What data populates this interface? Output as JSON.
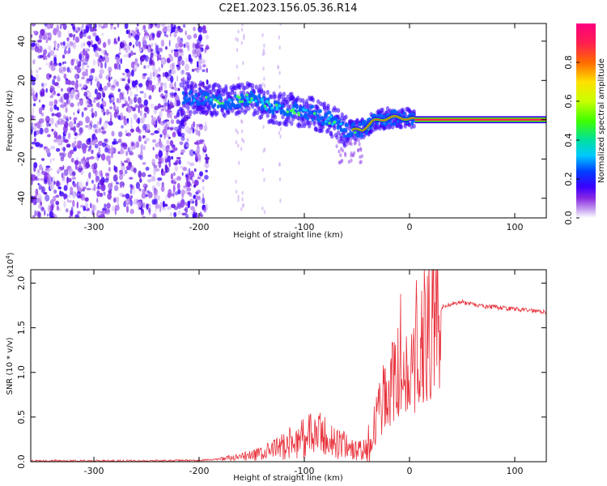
{
  "title": "C2E1.2023.156.05.36.R14",
  "chart_data": [
    {
      "type": "heatmap",
      "xlabel": "Height of straight line (km)",
      "ylabel": "Frequency (Hz)",
      "xlim": [
        -360,
        130
      ],
      "ylim": [
        -50,
        49
      ],
      "x_ticks": [
        -300,
        -200,
        -100,
        0,
        100
      ],
      "y_ticks": [
        -40,
        -20,
        0,
        20,
        40
      ],
      "grid": false,
      "colorbar": {
        "label": "Normalized spectral amplitude",
        "range": [
          0.0,
          1.0
        ],
        "ticks": [
          0.0,
          0.2,
          0.4,
          0.6,
          0.8
        ],
        "tick_labels": [
          "0.0",
          "0.2",
          "0.4",
          "0.6",
          "0.8"
        ],
        "colors": [
          "#ffffff",
          "#c9a8f0",
          "#8a2be2",
          "#3a00ff",
          "#0040ff",
          "#00c8ff",
          "#00e0a0",
          "#40ff00",
          "#c8ff00",
          "#ffe000",
          "#ff6a00",
          "#ff1e50",
          "#ff0080"
        ]
      },
      "noise_region": {
        "x": [
          -360,
          -200
        ],
        "y": [
          -50,
          49
        ]
      },
      "signal_trend": [
        {
          "x": -215,
          "y": 12
        },
        {
          "x": -195,
          "y": 11
        },
        {
          "x": -175,
          "y": 9
        },
        {
          "x": -150,
          "y": 11
        },
        {
          "x": -130,
          "y": 6
        },
        {
          "x": -110,
          "y": 5
        },
        {
          "x": -90,
          "y": 3
        },
        {
          "x": -75,
          "y": 0
        },
        {
          "x": -60,
          "y": -6
        },
        {
          "x": -45,
          "y": -5
        },
        {
          "x": -35,
          "y": -1
        },
        {
          "x": -20,
          "y": 1
        },
        {
          "x": -5,
          "y": 1
        },
        {
          "x": 5,
          "y": 0
        },
        {
          "x": 130,
          "y": 0
        }
      ],
      "steady_line": {
        "x": [
          5,
          130
        ],
        "y": 0
      }
    },
    {
      "type": "line",
      "xlabel": "Height of straight line (km)",
      "ylabel": "SNR (10 * v/v)",
      "y_multiplier_label": "(x10",
      "y_multiplier_exp": "4",
      "xlim": [
        -360,
        130
      ],
      "ylim": [
        0,
        2.15
      ],
      "x_ticks": [
        -300,
        -200,
        -100,
        0,
        100
      ],
      "y_ticks": [
        0.0,
        0.5,
        1.0,
        1.5,
        2.0
      ],
      "y_tick_labels": [
        "0.0",
        "0.5",
        "1.0",
        "1.5",
        "2.0"
      ],
      "grid": false,
      "series": [
        {
          "color": "#e8323c",
          "x": [
            -360,
            -300,
            -250,
            -200,
            -180,
            -160,
            -150,
            -140,
            -130,
            -120,
            -110,
            -100,
            -90,
            -80,
            -70,
            -60,
            -50,
            -40,
            -35,
            -30,
            -25,
            -20,
            -15,
            -10,
            -5,
            0,
            5,
            10,
            15,
            20,
            25,
            30,
            35,
            40,
            45,
            50,
            55,
            60,
            70,
            80,
            90,
            100,
            110,
            120,
            130
          ],
          "values": [
            0.01,
            0.01,
            0.01,
            0.015,
            0.03,
            0.05,
            0.07,
            0.09,
            0.13,
            0.18,
            0.22,
            0.28,
            0.3,
            0.28,
            0.2,
            0.18,
            0.12,
            0.14,
            0.3,
            0.55,
            0.7,
            0.85,
            0.9,
            1.0,
            0.95,
            1.05,
            1.1,
            1.25,
            1.45,
            1.55,
            1.65,
            1.72,
            1.75,
            1.77,
            1.78,
            1.79,
            1.77,
            1.76,
            1.74,
            1.73,
            1.72,
            1.71,
            1.7,
            1.69,
            1.68
          ]
        }
      ]
    }
  ]
}
